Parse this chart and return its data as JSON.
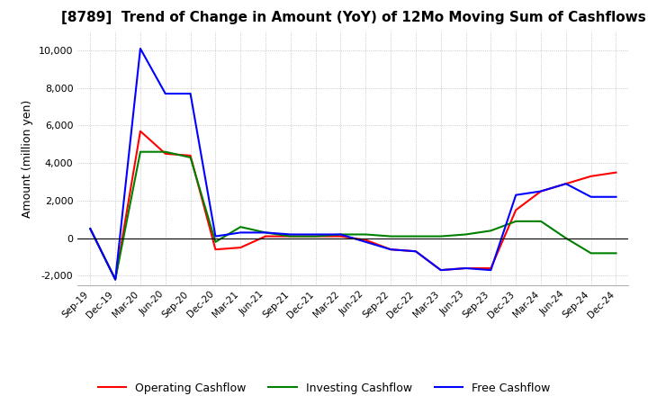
{
  "title": "[8789]  Trend of Change in Amount (YoY) of 12Mo Moving Sum of Cashflows",
  "ylabel": "Amount (million yen)",
  "xlabels": [
    "Sep-19",
    "Dec-19",
    "Mar-20",
    "Jun-20",
    "Sep-20",
    "Dec-20",
    "Mar-21",
    "Jun-21",
    "Sep-21",
    "Dec-21",
    "Mar-22",
    "Jun-22",
    "Sep-22",
    "Dec-22",
    "Mar-23",
    "Jun-23",
    "Sep-23",
    "Dec-23",
    "Mar-24",
    "Jun-24",
    "Sep-24",
    "Dec-24"
  ],
  "operating": [
    500,
    -2200,
    5700,
    4500,
    4400,
    -600,
    -500,
    100,
    100,
    100,
    100,
    -100,
    -600,
    -700,
    -1700,
    -1600,
    -1600,
    1500,
    2500,
    2900,
    3300,
    3500
  ],
  "investing": [
    500,
    -2200,
    4600,
    4600,
    4300,
    -200,
    600,
    300,
    100,
    100,
    200,
    200,
    100,
    100,
    100,
    200,
    400,
    900,
    900,
    0,
    -800,
    -800
  ],
  "free": [
    500,
    -2200,
    10100,
    7700,
    7700,
    100,
    300,
    300,
    200,
    200,
    200,
    -200,
    -600,
    -700,
    -1700,
    -1600,
    -1700,
    2300,
    2500,
    2900,
    2200,
    2200
  ],
  "operating_color": "#ff0000",
  "investing_color": "#008000",
  "free_color": "#0000ff",
  "ylim": [
    -2500,
    11000
  ],
  "yticks": [
    -2000,
    0,
    2000,
    4000,
    6000,
    8000,
    10000
  ],
  "bg_color": "#ffffff",
  "grid_color": "#aaaaaa"
}
